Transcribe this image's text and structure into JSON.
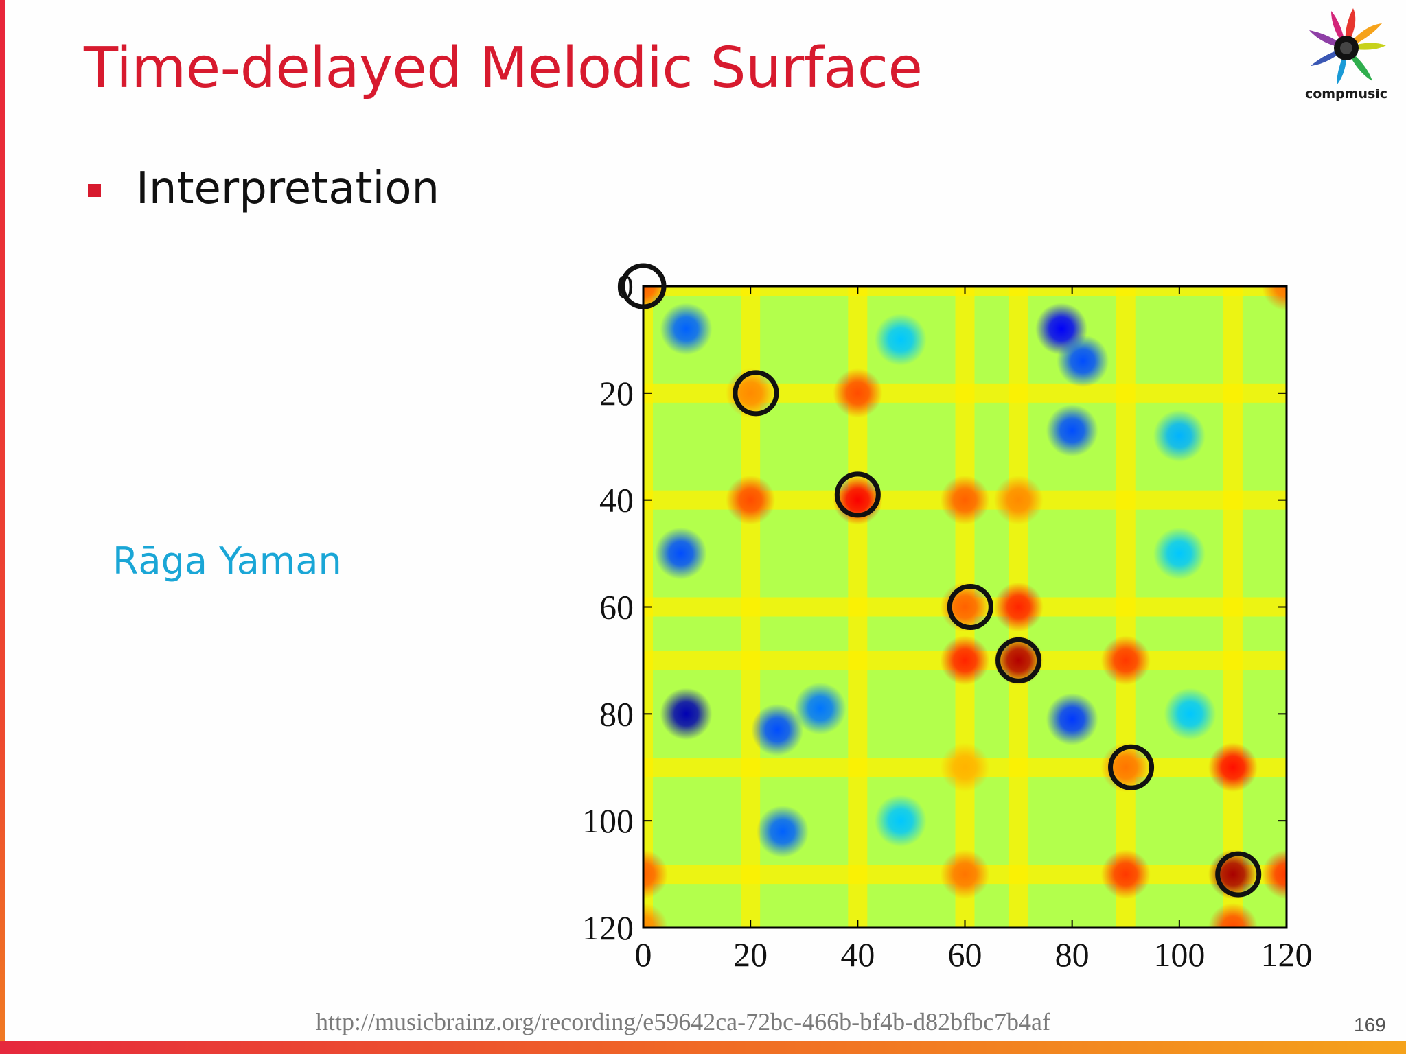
{
  "slide": {
    "title": "Time-delayed Melodic Surface",
    "bullet": "Interpretation",
    "raga_label": "Rāga Yaman",
    "logo_text": "compmusic",
    "source_url": "http://musicbrainz.org/recording/e59642ca-72bc-466b-bf4b-d82bfbc7b4af",
    "slide_number": "169"
  },
  "colors": {
    "title": "#d71a2e",
    "raga_label": "#1aa6d6",
    "circle_stroke": "#111111"
  },
  "chart_data": {
    "type": "heatmap",
    "title": "",
    "xlabel": "",
    "ylabel": "",
    "xlim": [
      0,
      120
    ],
    "ylim": [
      120,
      0
    ],
    "x_ticks": [
      0,
      20,
      40,
      60,
      80,
      100,
      120
    ],
    "y_ticks": [
      0,
      20,
      40,
      60,
      80,
      100,
      120
    ],
    "colormap": "jet",
    "background_level": 0.55,
    "peak_lines": [
      0,
      20,
      40,
      60,
      70,
      90,
      110
    ],
    "hot_spots": [
      {
        "x": 0,
        "y": 0,
        "intensity": 0.78
      },
      {
        "x": 20,
        "y": 20,
        "intensity": 0.74
      },
      {
        "x": 40,
        "y": 20,
        "intensity": 0.8
      },
      {
        "x": 20,
        "y": 40,
        "intensity": 0.8
      },
      {
        "x": 40,
        "y": 40,
        "intensity": 0.88
      },
      {
        "x": 60,
        "y": 40,
        "intensity": 0.78
      },
      {
        "x": 70,
        "y": 40,
        "intensity": 0.74
      },
      {
        "x": 60,
        "y": 60,
        "intensity": 0.78
      },
      {
        "x": 70,
        "y": 60,
        "intensity": 0.84
      },
      {
        "x": 70,
        "y": 70,
        "intensity": 0.95
      },
      {
        "x": 60,
        "y": 70,
        "intensity": 0.84
      },
      {
        "x": 90,
        "y": 70,
        "intensity": 0.82
      },
      {
        "x": 90,
        "y": 90,
        "intensity": 0.76
      },
      {
        "x": 110,
        "y": 90,
        "intensity": 0.86
      },
      {
        "x": 60,
        "y": 90,
        "intensity": 0.7
      },
      {
        "x": 110,
        "y": 110,
        "intensity": 0.96
      },
      {
        "x": 90,
        "y": 110,
        "intensity": 0.82
      },
      {
        "x": 60,
        "y": 110,
        "intensity": 0.76
      },
      {
        "x": 0,
        "y": 110,
        "intensity": 0.78
      },
      {
        "x": 120,
        "y": 0,
        "intensity": 0.76
      },
      {
        "x": 120,
        "y": 110,
        "intensity": 0.82
      },
      {
        "x": 0,
        "y": 120,
        "intensity": 0.74
      },
      {
        "x": 110,
        "y": 120,
        "intensity": 0.8
      }
    ],
    "cold_spots": [
      {
        "x": 8,
        "y": 8,
        "intensity": 0.22
      },
      {
        "x": 78,
        "y": 8,
        "intensity": 0.12
      },
      {
        "x": 82,
        "y": 14,
        "intensity": 0.2
      },
      {
        "x": 80,
        "y": 27,
        "intensity": 0.2
      },
      {
        "x": 7,
        "y": 50,
        "intensity": 0.2
      },
      {
        "x": 8,
        "y": 80,
        "intensity": 0.05
      },
      {
        "x": 25,
        "y": 83,
        "intensity": 0.2
      },
      {
        "x": 33,
        "y": 79,
        "intensity": 0.24
      },
      {
        "x": 80,
        "y": 81,
        "intensity": 0.18
      },
      {
        "x": 26,
        "y": 102,
        "intensity": 0.22
      },
      {
        "x": 48,
        "y": 10,
        "intensity": 0.32
      },
      {
        "x": 100,
        "y": 28,
        "intensity": 0.3
      },
      {
        "x": 100,
        "y": 50,
        "intensity": 0.32
      },
      {
        "x": 48,
        "y": 100,
        "intensity": 0.32
      },
      {
        "x": 102,
        "y": 80,
        "intensity": 0.32
      }
    ],
    "annotations": [
      {
        "type": "circle",
        "x": 0,
        "y": 0
      },
      {
        "type": "circle",
        "x": 21,
        "y": 20
      },
      {
        "type": "circle",
        "x": 40,
        "y": 39
      },
      {
        "type": "circle",
        "x": 61,
        "y": 60
      },
      {
        "type": "circle",
        "x": 70,
        "y": 70
      },
      {
        "type": "circle",
        "x": 91,
        "y": 90
      },
      {
        "type": "circle",
        "x": 111,
        "y": 110
      }
    ]
  }
}
